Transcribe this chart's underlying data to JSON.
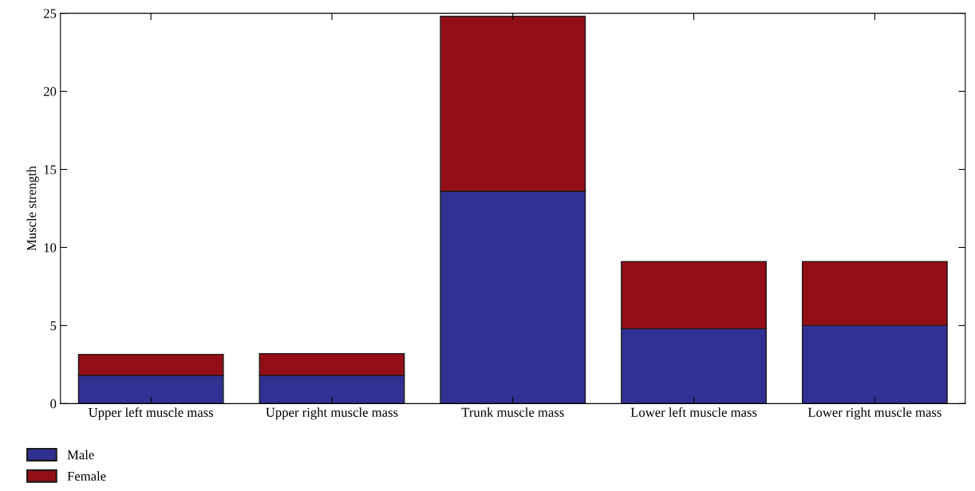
{
  "chart_data": {
    "type": "bar",
    "stacked": true,
    "ylabel": "Muscle strength",
    "categories": [
      "Upper left muscle mass",
      "Upper right muscle mass",
      "Trunk muscle mass",
      "Lower left muscle mass",
      "Lower right muscle mass"
    ],
    "series": [
      {
        "name": "Male",
        "color": "#303192",
        "values": [
          1.8,
          1.8,
          13.6,
          4.8,
          5.0
        ]
      },
      {
        "name": "Female",
        "color": "#940e16",
        "values": [
          1.35,
          1.4,
          11.2,
          4.3,
          4.1
        ]
      }
    ],
    "ylim": [
      0,
      25
    ],
    "yticks": [
      0,
      5,
      10,
      15,
      20,
      25
    ],
    "grid": false,
    "legend": "bottom left"
  }
}
